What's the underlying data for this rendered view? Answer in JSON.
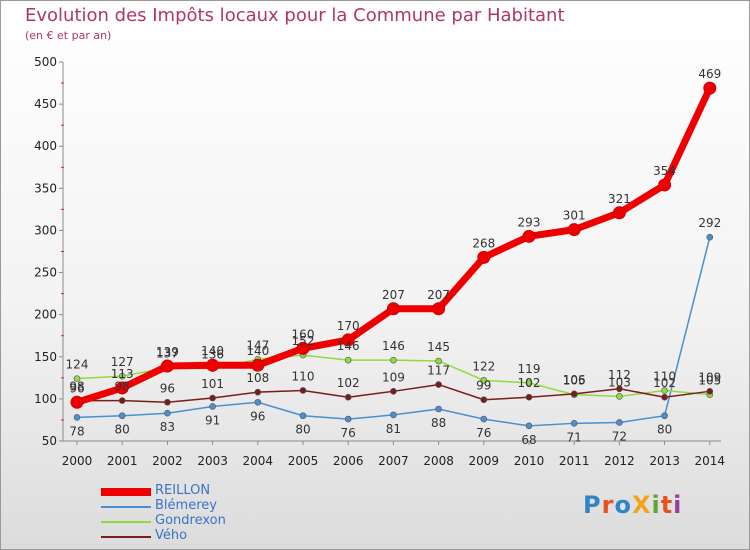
{
  "page": {
    "title": "Evolution des Impôts locaux pour la Commune par Habitant",
    "subtitle": "(en € et par an)"
  },
  "logo": {
    "text": "ProXiti",
    "colors": [
      "#2f86c6",
      "#e8521d",
      "#2f86c6",
      "#f2a51c",
      "#5ca832",
      "#e8521d",
      "#9c3d9b"
    ]
  },
  "chart_data": {
    "type": "line",
    "title": "Evolution des Impôts locaux pour la Commune par Habitant",
    "subtitle": "(en € et par an)",
    "xlabel": "",
    "ylabel": "",
    "x": [
      "2000",
      "2001",
      "2002",
      "2003",
      "2004",
      "2005",
      "2006",
      "2007",
      "2008",
      "2009",
      "2010",
      "2011",
      "2012",
      "2013",
      "2014"
    ],
    "ylim": [
      50,
      500
    ],
    "yticks": [
      "500",
      "450",
      "400",
      "350",
      "300",
      "250",
      "200",
      "150",
      "100",
      "50"
    ],
    "grid": false,
    "legend_position": "bottom-left",
    "series": [
      {
        "name": "REILLON",
        "color": "#ee0000",
        "values": [
          96,
          113,
          139,
          140,
          140,
          160,
          170,
          207,
          207,
          268,
          293,
          301,
          321,
          354,
          469
        ],
        "labels": [
          "96",
          "113",
          "139",
          "140",
          "140",
          "160",
          "170",
          "207",
          "207",
          "268",
          "293",
          "301",
          "321",
          "354",
          "469"
        ]
      },
      {
        "name": "Blémerey",
        "color": "#4a8fcf",
        "values": [
          78,
          80,
          83,
          91,
          96,
          80,
          76,
          81,
          88,
          76,
          68,
          71,
          72,
          80,
          292
        ],
        "labels": [
          "78",
          "80",
          "83",
          "91",
          "96",
          "80",
          "76",
          "81",
          "88",
          "76",
          "68",
          "71",
          "72",
          "80",
          "292"
        ]
      },
      {
        "name": "Gondrexon",
        "color": "#8fdb3c",
        "values": [
          124,
          127,
          137,
          136,
          147,
          152,
          146,
          146,
          145,
          122,
          119,
          105,
          103,
          110,
          105
        ],
        "labels": [
          "124",
          "127",
          "137",
          "136",
          "147",
          "152",
          "146",
          "146",
          "145",
          "122",
          "119",
          "105",
          "103",
          "110",
          "105"
        ]
      },
      {
        "name": "Vého",
        "color": "#7a1c1c",
        "values": [
          98,
          98,
          96,
          101,
          108,
          110,
          102,
          109,
          117,
          99,
          102,
          106,
          112,
          102,
          109
        ],
        "labels": [
          "98",
          "98",
          "96",
          "101",
          "108",
          "110",
          "102",
          "109",
          "117",
          "99",
          "102",
          "106",
          "112",
          "102",
          "109"
        ]
      }
    ]
  }
}
